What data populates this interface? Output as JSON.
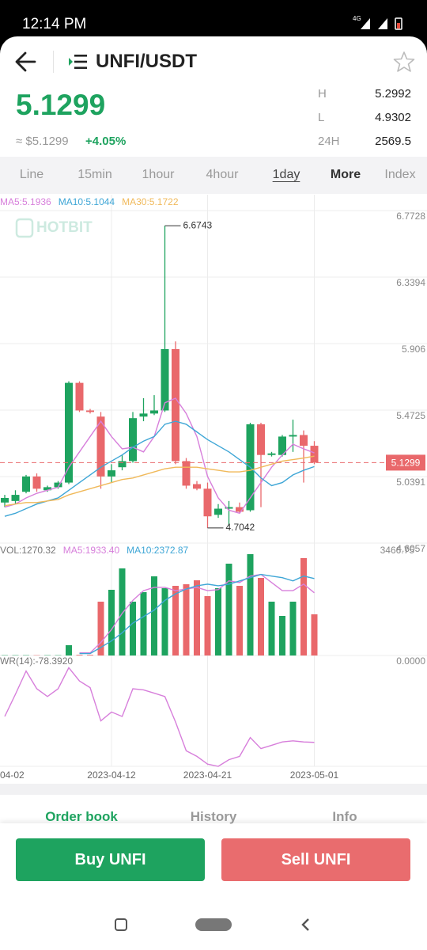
{
  "status_bar": {
    "time": "12:14 PM",
    "network": "4G"
  },
  "header": {
    "pair": "UNFI/USDT"
  },
  "ticker": {
    "price": "5.1299",
    "usd_price": "≈ $5.1299",
    "change": "+4.05%",
    "stats": [
      {
        "label": "H",
        "value": "5.2992"
      },
      {
        "label": "L",
        "value": "4.9302"
      },
      {
        "label": "24H",
        "value": "2569.5"
      }
    ]
  },
  "intervals": [
    "Line",
    "15min",
    "1hour",
    "4hour",
    "1day",
    "More",
    "Index"
  ],
  "chart_data": {
    "type": "candlestick",
    "categories": [
      "04-02",
      null,
      null,
      null,
      null,
      null,
      null,
      null,
      null,
      null,
      "2023-04-12",
      null,
      null,
      null,
      null,
      null,
      null,
      null,
      null,
      "2023-04-21",
      null,
      null,
      null,
      null,
      null,
      null,
      null,
      null,
      null,
      "2023-05-01"
    ],
    "open": [
      4.87,
      4.88,
      4.94,
      5.04,
      4.95,
      4.97,
      5.0,
      5.65,
      5.47,
      5.43,
      5.04,
      5.1,
      5.14,
      5.43,
      5.45,
      5.47,
      5.87,
      5.14,
      4.99,
      4.96,
      4.79,
      4.83,
      4.84,
      4.82,
      5.38,
      5.18,
      5.18,
      5.3,
      5.31,
      5.24
    ],
    "high": [
      4.92,
      4.95,
      5.05,
      5.06,
      4.98,
      5.01,
      5.66,
      5.66,
      5.48,
      5.46,
      5.12,
      5.18,
      5.46,
      5.55,
      5.57,
      6.6743,
      5.92,
      5.16,
      5.01,
      5.0,
      4.86,
      4.88,
      4.87,
      5.39,
      5.39,
      5.2,
      5.31,
      5.41,
      5.34,
      5.27
    ],
    "low": [
      4.84,
      4.86,
      4.93,
      4.94,
      4.94,
      4.96,
      4.99,
      5.46,
      5.45,
      4.96,
      5.0,
      5.08,
      5.13,
      5.4,
      5.44,
      5.46,
      5.12,
      4.96,
      4.95,
      4.7042,
      4.77,
      4.72,
      4.8,
      4.81,
      4.84,
      5.17,
      5.17,
      5.2,
      5.0,
      5.12
    ],
    "close": [
      4.9,
      4.92,
      5.04,
      4.96,
      4.97,
      5.0,
      5.65,
      5.47,
      5.46,
      5.04,
      5.08,
      5.14,
      5.42,
      5.45,
      5.47,
      5.87,
      5.14,
      4.98,
      4.96,
      4.78,
      4.83,
      4.84,
      4.81,
      5.38,
      5.18,
      5.19,
      5.3,
      5.31,
      5.24,
      5.1299
    ],
    "up_color": "#1ea35f",
    "down_color": "#e9686b",
    "ylim": [
      4.6057,
      6.7728
    ],
    "yticks": [
      6.7728,
      6.3394,
      5.906,
      5.4725,
      5.0391,
      4.6057
    ],
    "last_price": 5.1299,
    "max_label": "6.6743",
    "min_label": "4.7042",
    "watermark": "HOTBIT",
    "ma": [
      {
        "name": "MA5:5.1936",
        "color": "#d77fdb",
        "values": [
          4.84,
          4.86,
          4.9,
          4.93,
          4.95,
          4.97,
          5.1,
          5.2,
          5.3,
          5.4,
          5.3,
          5.22,
          5.23,
          5.2,
          5.3,
          5.52,
          5.55,
          5.45,
          5.3,
          5.04,
          4.9,
          4.82,
          4.8,
          4.9,
          5.0,
          5.1,
          5.18,
          5.25,
          5.22,
          5.1936
        ]
      },
      {
        "name": "MA10:5.1044",
        "color": "#3ea6d6",
        "values": [
          4.78,
          4.8,
          4.83,
          4.86,
          4.88,
          4.9,
          4.95,
          5.0,
          5.05,
          5.1,
          5.14,
          5.18,
          5.23,
          5.27,
          5.3,
          5.38,
          5.4,
          5.38,
          5.33,
          5.28,
          5.24,
          5.2,
          5.15,
          5.1,
          5.03,
          4.98,
          5.0,
          5.05,
          5.08,
          5.1044
        ]
      },
      {
        "name": "MA30:5.1722",
        "color": "#f0b95a",
        "values": [
          4.85,
          4.86,
          4.87,
          4.87,
          4.88,
          4.89,
          4.92,
          4.94,
          4.96,
          4.98,
          5.0,
          5.02,
          5.03,
          5.05,
          5.07,
          5.09,
          5.1,
          5.1,
          5.1,
          5.09,
          5.08,
          5.07,
          5.07,
          5.08,
          5.1,
          5.12,
          5.14,
          5.15,
          5.16,
          5.1722
        ]
      }
    ],
    "volume": {
      "name": "VOL:1270.32",
      "values": [
        10,
        10,
        10,
        10,
        10,
        10,
        317,
        20,
        20,
        1660,
        2026,
        2686,
        1660,
        1953,
        2441,
        2075,
        2148,
        2197,
        2319,
        1831,
        2075,
        2832,
        2148,
        3125,
        2393,
        1660,
        1221,
        1660,
        3003,
        1270.32
      ],
      "ylim": [
        0,
        3466.75
      ],
      "yticks": [
        3466.75
      ],
      "ma": [
        {
          "name": "MA5:1933.40",
          "color": "#d77fdb",
          "values": [
            null,
            null,
            null,
            null,
            null,
            null,
            null,
            80,
            80,
            400,
            800,
            1300,
            1700,
            2000,
            2100,
            2100,
            2000,
            2050,
            2100,
            2000,
            2030,
            2300,
            2250,
            2450,
            2500,
            2250,
            2000,
            2000,
            2200,
            1933.4
          ]
        },
        {
          "name": "MA10:2372.87",
          "color": "#3ea6d6",
          "values": [
            null,
            null,
            null,
            null,
            null,
            null,
            null,
            60,
            60,
            250,
            450,
            700,
            1000,
            1200,
            1400,
            1700,
            1900,
            2050,
            2150,
            2200,
            2150,
            2200,
            2300,
            2400,
            2500,
            2450,
            2400,
            2300,
            2450,
            2372.87
          ]
        }
      ]
    },
    "wr": {
      "name": "WR(14):-78.3920",
      "color": "#d77fdb",
      "values": [
        -55,
        -35,
        -14,
        -30,
        -37,
        -30,
        -11,
        -23,
        -29,
        -59,
        -51,
        -55,
        -30,
        -31,
        -34,
        -37,
        -60,
        -86,
        -91,
        -98,
        -100,
        -94,
        -91,
        -74,
        -84,
        -81,
        -78,
        -77,
        -78,
        -78.392
      ],
      "ylim": [
        -100,
        0
      ],
      "yticks": [
        {
          "value": 0,
          "label": "0.0000"
        }
      ]
    }
  },
  "bottom_tabs": [
    "Order book",
    "History",
    "Info"
  ],
  "actions": {
    "buy": "Buy UNFI",
    "sell": "Sell UNFI"
  }
}
